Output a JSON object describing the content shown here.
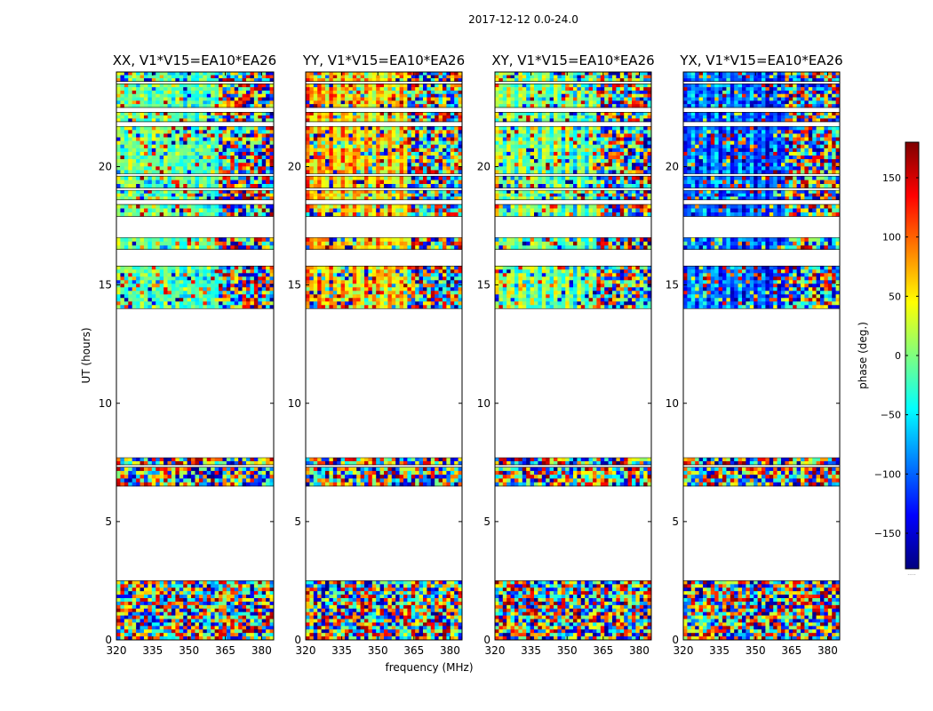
{
  "figure_title": "2017-12-12 0.0-24.0",
  "colors": {
    "colormap": "jet",
    "stops": [
      "#00007f",
      "#0000ff",
      "#007fff",
      "#00ffff",
      "#7fff7f",
      "#ffff00",
      "#ff7f00",
      "#ff0000",
      "#7f0000"
    ],
    "frame": "#000000",
    "background": "#ffffff"
  },
  "chart_data": [
    {
      "type": "heatmap",
      "title": "XX, V1*V15=EA10*EA26",
      "xlabel": "",
      "ylabel": "UT (hours)",
      "xlim": [
        320,
        385
      ],
      "ylim": [
        0,
        24
      ],
      "xticks": [
        "320",
        "335",
        "350",
        "365",
        "380"
      ],
      "yticks": [
        "0",
        "5",
        "10",
        "15",
        "20"
      ],
      "value_description": "phase (deg.) of visibility vs frequency and time; coherent low-band structure below ~362 MHz, noisy above",
      "coherent_phase_deg": [
        20,
        0,
        -20
      ]
    },
    {
      "type": "heatmap",
      "title": "YY, V1*V15=EA10*EA26",
      "xlabel": "frequency (MHz)",
      "ylabel": "",
      "xlim": [
        320,
        385
      ],
      "ylim": [
        0,
        24
      ],
      "xticks": [
        "320",
        "335",
        "350",
        "365",
        "380"
      ],
      "yticks": [
        "0",
        "5",
        "10",
        "15",
        "20"
      ],
      "value_description": "phase (deg.); strongly coherent warm (red/orange) phases below ~362 MHz",
      "coherent_phase_deg": [
        110,
        70,
        40
      ]
    },
    {
      "type": "heatmap",
      "title": "XY, V1*V15=EA10*EA26",
      "xlabel": "",
      "ylabel": "",
      "xlim": [
        320,
        385
      ],
      "ylim": [
        0,
        24
      ],
      "xticks": [
        "320",
        "335",
        "350",
        "365",
        "380"
      ],
      "yticks": [
        "0",
        "5",
        "10",
        "15",
        "20"
      ],
      "value_description": "phase (deg.); mostly noisy, weak coherence in ~17-18 h band",
      "coherent_phase_deg": [
        40,
        10,
        -30
      ]
    },
    {
      "type": "heatmap",
      "title": "YX, V1*V15=EA10*EA26",
      "xlabel": "",
      "ylabel": "",
      "xlim": [
        320,
        385
      ],
      "ylim": [
        0,
        24
      ],
      "xticks": [
        "320",
        "335",
        "350",
        "365",
        "380"
      ],
      "yticks": [
        "0",
        "5",
        "10",
        "15",
        "20"
      ],
      "value_description": "phase (deg.); mostly noisy, coherent blue (~ -120 deg) near 16.5-18 h",
      "coherent_phase_deg": [
        -120,
        -90,
        -60
      ]
    }
  ],
  "data_bands_hours": [
    [
      0.0,
      2.5
    ],
    [
      6.5,
      7.3
    ],
    [
      7.4,
      7.7
    ],
    [
      14.0,
      15.8
    ],
    [
      16.5,
      17.0
    ],
    [
      17.9,
      18.4
    ],
    [
      18.6,
      19.0
    ],
    [
      19.1,
      19.6
    ],
    [
      19.7,
      21.7
    ],
    [
      21.9,
      22.3
    ],
    [
      22.5,
      23.5
    ],
    [
      23.6,
      24.0
    ]
  ],
  "colorbar": {
    "label": "phase (deg.)",
    "range": [
      -180,
      180
    ],
    "ticks": [
      "−150",
      "−100",
      "−50",
      "0",
      "50",
      "100",
      "150"
    ],
    "tick_values": [
      -150,
      -100,
      -50,
      0,
      50,
      100,
      150
    ],
    "footer": "....."
  }
}
